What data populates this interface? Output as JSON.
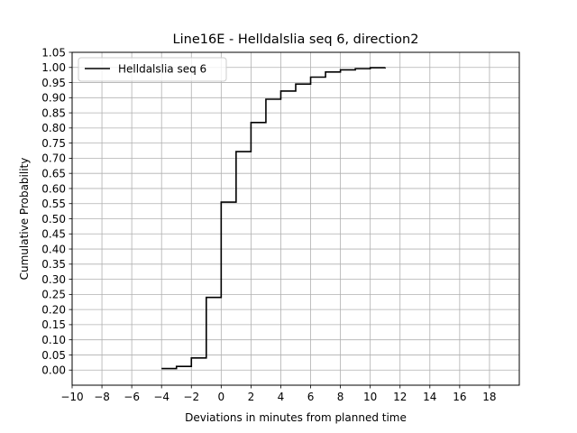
{
  "chart_data": {
    "type": "line",
    "drawstyle": "steps-post",
    "title": "Line16E - Helldalslia seq 6, direction2",
    "xlabel": "Deviations in minutes from planned time",
    "ylabel": "Cumulative Probability",
    "xlim": [
      -10,
      20
    ],
    "ylim": [
      -0.05,
      1.05
    ],
    "xticks": [
      -10,
      -8,
      -6,
      -4,
      -2,
      0,
      2,
      4,
      6,
      8,
      10,
      12,
      14,
      16,
      18
    ],
    "xtick_labels": [
      "−10",
      "−8",
      "−6",
      "−4",
      "−2",
      "0",
      "2",
      "4",
      "6",
      "8",
      "10",
      "12",
      "14",
      "16",
      "18"
    ],
    "yticks": [
      0.0,
      0.05,
      0.1,
      0.15,
      0.2,
      0.25,
      0.3,
      0.35,
      0.4,
      0.45,
      0.5,
      0.55,
      0.6,
      0.65,
      0.7,
      0.75,
      0.8,
      0.85,
      0.9,
      0.95,
      1.0,
      1.05
    ],
    "ytick_labels": [
      "0.00",
      "0.05",
      "0.10",
      "0.15",
      "0.20",
      "0.25",
      "0.30",
      "0.35",
      "0.40",
      "0.45",
      "0.50",
      "0.55",
      "0.60",
      "0.65",
      "0.70",
      "0.75",
      "0.80",
      "0.85",
      "0.90",
      "0.95",
      "1.00",
      "1.05"
    ],
    "grid": true,
    "legend_position": "top-left",
    "series": [
      {
        "name": "Helldalslia seq 6",
        "color": "#000000",
        "x": [
          -4,
          -3,
          -2,
          -1,
          0,
          1,
          2,
          3,
          4,
          5,
          6,
          7,
          8,
          9,
          10,
          11
        ],
        "y": [
          0.005,
          0.012,
          0.04,
          0.24,
          0.555,
          0.722,
          0.818,
          0.895,
          0.922,
          0.945,
          0.968,
          0.985,
          0.992,
          0.996,
          0.999,
          1.0
        ]
      }
    ]
  }
}
